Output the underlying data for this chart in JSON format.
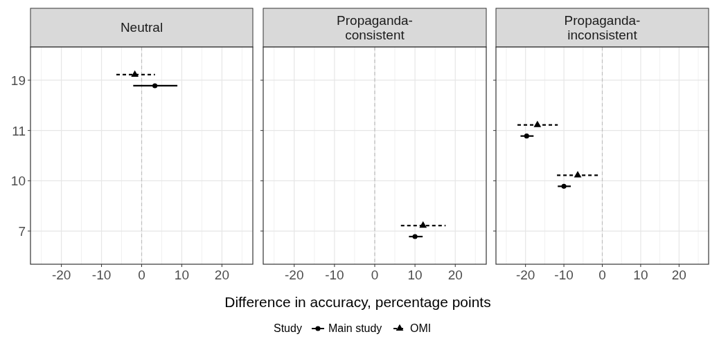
{
  "chart_data": [
    {
      "type": "scatter",
      "orientation": "horizontal",
      "title": "Neutral",
      "categories": [
        "19",
        "11",
        "10",
        "7"
      ],
      "xlim": [
        -27.7,
        27.7
      ],
      "xticks": [
        -20,
        -10,
        0,
        10,
        20
      ],
      "grid": true,
      "legend": false,
      "ref_lines": [
        {
          "axis": "x",
          "value": 0,
          "color": "#bfbfbf",
          "line_style": "dashed"
        }
      ],
      "series": [
        {
          "color": "#000000",
          "marker": "circle",
          "line_style": "solid",
          "values": [
            3.3,
            null,
            null,
            null
          ],
          "errors": [
            [
              -2.1,
              8.9
            ],
            null,
            null,
            null
          ]
        },
        {
          "color": "#000000",
          "marker": "triangle",
          "line_style": "dashed",
          "values": [
            -1.7,
            null,
            null,
            null
          ],
          "errors": [
            [
              -6.3,
              3.3
            ],
            null,
            null,
            null
          ]
        }
      ]
    },
    {
      "type": "scatter",
      "orientation": "horizontal",
      "title": "Propaganda-\nconsistent",
      "xlabel": "Difference in accuracy, percentage points",
      "legend_title": "Study",
      "categories": [
        "19",
        "11",
        "10",
        "7"
      ],
      "xlim": [
        -27.7,
        27.7
      ],
      "xticks": [
        -20,
        -10,
        0,
        10,
        20
      ],
      "grid": true,
      "legend": "bottom",
      "tick_labels": "x",
      "ref_lines": [
        {
          "axis": "x",
          "value": 0,
          "color": "#bfbfbf",
          "line_style": "dashed"
        }
      ],
      "series": [
        {
          "name": "Main study",
          "color": "#000000",
          "marker": "circle",
          "line_style": "solid",
          "values": [
            null,
            null,
            null,
            10.0
          ],
          "errors": [
            null,
            null,
            null,
            [
              8.5,
              11.9
            ]
          ]
        },
        {
          "name": "OMI",
          "color": "#000000",
          "marker": "triangle",
          "line_style": "dashed",
          "values": [
            null,
            null,
            null,
            12.0
          ],
          "errors": [
            null,
            null,
            null,
            [
              6.5,
              17.6
            ]
          ]
        }
      ]
    },
    {
      "type": "scatter",
      "orientation": "horizontal",
      "title": "Propaganda-\ninconsistent",
      "categories": [
        "19",
        "11",
        "10",
        "7"
      ],
      "xlim": [
        -27.7,
        27.7
      ],
      "xticks": [
        -20,
        -10,
        0,
        10,
        20
      ],
      "grid": true,
      "legend": false,
      "tick_labels": "x",
      "ref_lines": [
        {
          "axis": "x",
          "value": 0,
          "color": "#bfbfbf",
          "line_style": "dashed"
        }
      ],
      "series": [
        {
          "color": "#000000",
          "marker": "circle",
          "line_style": "solid",
          "values": [
            null,
            -19.7,
            -10.0,
            null
          ],
          "errors": [
            null,
            [
              -21.3,
              -17.9
            ],
            [
              -11.6,
              -8.2
            ],
            null
          ]
        },
        {
          "color": "#000000",
          "marker": "triangle",
          "line_style": "dashed",
          "values": [
            null,
            -16.9,
            -6.4,
            null
          ],
          "errors": [
            null,
            [
              -22.1,
              -11.6
            ],
            [
              -11.8,
              -0.8
            ],
            null
          ]
        }
      ]
    }
  ]
}
